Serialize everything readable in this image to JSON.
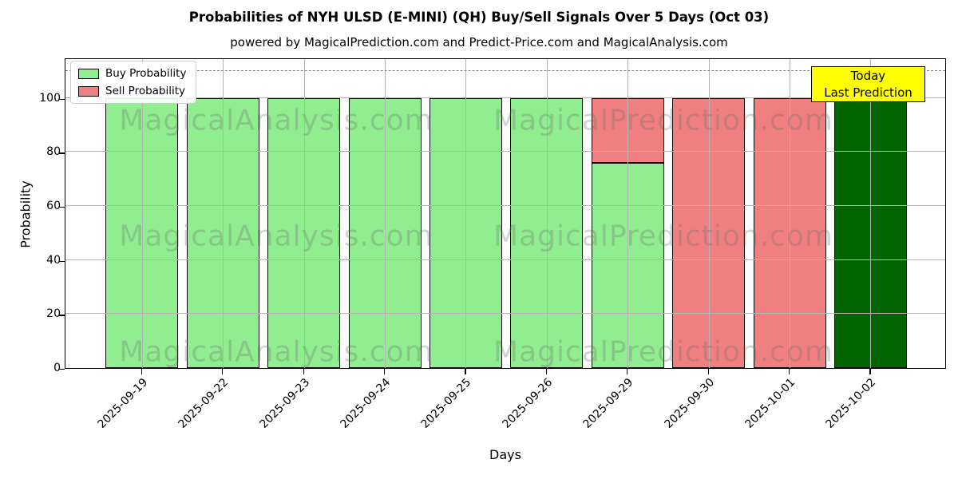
{
  "figure": {
    "title": "Probabilities of NYH ULSD (E-MINI) (QH) Buy/Sell Signals Over 5 Days (Oct 03)",
    "subtitle": "powered by MagicalPrediction.com and Predict-Price.com and MagicalAnalysis.com",
    "xlabel": "Days",
    "ylabel": "Probability"
  },
  "legend": {
    "items": [
      {
        "label": "Buy Probability",
        "color": "#90ee90"
      },
      {
        "label": "Sell Probability",
        "color": "#f08080"
      }
    ]
  },
  "annotation_box": {
    "line1": "Today",
    "line2": "Last Prediction",
    "bg_color": "#ffff00"
  },
  "watermarks": {
    "left_text": "MagicalAnalysis.com",
    "right_text": "MagicalPrediction.com"
  },
  "chart_data": {
    "type": "bar",
    "stacked": true,
    "title": "Probabilities of NYH ULSD (E-MINI) (QH) Buy/Sell Signals Over 5 Days (Oct 03)",
    "subtitle": "powered by MagicalPrediction.com and Predict-Price.com and MagicalAnalysis.com",
    "xlabel": "Days",
    "ylabel": "Probability",
    "categories": [
      "2025-09-19",
      "2025-09-22",
      "2025-09-23",
      "2025-09-24",
      "2025-09-25",
      "2025-09-26",
      "2025-09-29",
      "2025-09-30",
      "2025-10-01",
      "2025-10-02"
    ],
    "series": [
      {
        "name": "Buy Probability",
        "color": "#90ee90",
        "values": [
          100,
          100,
          100,
          100,
          100,
          100,
          76,
          0,
          0,
          100
        ],
        "colors": [
          "#90ee90",
          "#90ee90",
          "#90ee90",
          "#90ee90",
          "#90ee90",
          "#90ee90",
          "#90ee90",
          null,
          null,
          "#006400"
        ]
      },
      {
        "name": "Sell Probability",
        "color": "#f08080",
        "values": [
          0,
          0,
          0,
          0,
          0,
          0,
          24,
          100,
          100,
          0
        ]
      }
    ],
    "ylim": [
      0,
      115
    ],
    "yticks": [
      0,
      20,
      40,
      60,
      80,
      100
    ],
    "dashed_line_y": 110,
    "grid": true,
    "legend_position": "upper left",
    "bar_edge_color": "#000000",
    "today_bar_color": "#006400"
  }
}
